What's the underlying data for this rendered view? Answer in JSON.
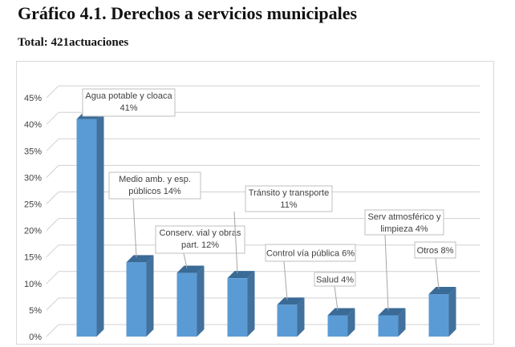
{
  "title": "Gráfico 4.1. Derechos a servicios municipales",
  "subtitle": "Total: 421actuaciones",
  "chart_data": {
    "type": "bar",
    "title": "Gráfico 4.1. Derechos a servicios municipales",
    "subtitle": "Total: 421actuaciones",
    "categories": [
      "Agua potable y cloaca",
      "Medio amb. y esp. públicos",
      "Conserv. vial y obras part.",
      "Tránsito y transporte",
      "Control vía pública",
      "Salud",
      "Serv atmosférico y limpieza",
      "Otros"
    ],
    "values": [
      41,
      14,
      12,
      11,
      6,
      4,
      4,
      8
    ],
    "data_labels": [
      [
        "Agua potable y cloaca",
        "41%"
      ],
      [
        "Medio amb. y esp.",
        "públicos 14%"
      ],
      [
        "Conserv. vial y obras",
        "part. 12%"
      ],
      [
        "Tránsito y transporte",
        "11%"
      ],
      [
        "Control vía pública 6%"
      ],
      [
        "Salud 4%"
      ],
      [
        "Serv atmosférico y",
        "limpieza 4%"
      ],
      [
        "Otros 8%"
      ]
    ],
    "yticks": [
      "0%",
      "5%",
      "10%",
      "15%",
      "20%",
      "25%",
      "30%",
      "35%",
      "40%",
      "45%"
    ],
    "ylim": [
      0,
      45
    ],
    "xlabel": "",
    "ylabel": "",
    "grid": true,
    "legend": "none",
    "bar_color": "#5b9bd5"
  }
}
